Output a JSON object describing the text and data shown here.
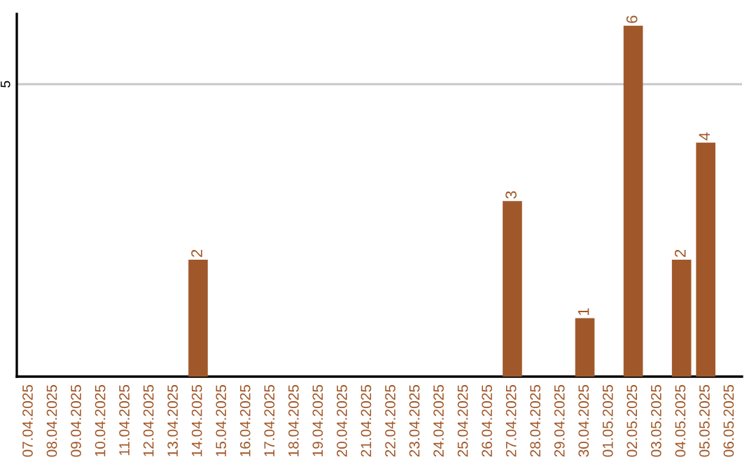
{
  "chart_data": {
    "type": "bar",
    "categories": [
      "07.04.2025",
      "08.04.2025",
      "09.04.2025",
      "10.04.2025",
      "11.04.2025",
      "12.04.2025",
      "13.04.2025",
      "14.04.2025",
      "15.04.2025",
      "16.04.2025",
      "17.04.2025",
      "18.04.2025",
      "19.04.2025",
      "20.04.2025",
      "21.04.2025",
      "22.04.2025",
      "23.04.2025",
      "24.04.2025",
      "25.04.2025",
      "26.04.2025",
      "27.04.2025",
      "28.04.2025",
      "29.04.2025",
      "30.04.2025",
      "01.05.2025",
      "02.05.2025",
      "03.05.2025",
      "04.05.2025",
      "05.05.2025",
      "06.05.2025"
    ],
    "values": [
      0,
      0,
      0,
      0,
      0,
      0,
      0,
      2,
      0,
      0,
      0,
      0,
      0,
      0,
      0,
      0,
      0,
      0,
      0,
      0,
      3,
      0,
      0,
      1,
      0,
      6,
      0,
      2,
      4,
      0
    ],
    "value_labels": [
      null,
      null,
      null,
      null,
      null,
      null,
      null,
      "2",
      null,
      null,
      null,
      null,
      null,
      null,
      null,
      null,
      null,
      null,
      null,
      null,
      "3",
      null,
      null,
      "1",
      null,
      "6",
      null,
      "2",
      "4",
      null
    ],
    "color": "#a0582a",
    "ylim": [
      0,
      6.2
    ],
    "yticks": [
      5
    ],
    "grid": "y"
  }
}
